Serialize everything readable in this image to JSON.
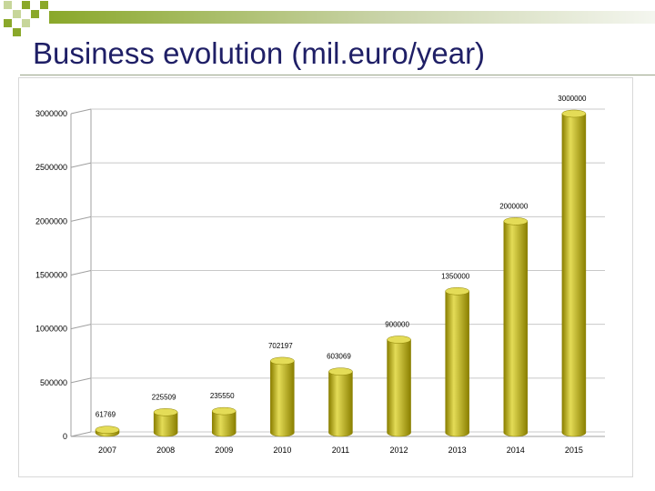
{
  "slide": {
    "title": "Business evolution (mil.euro/year)"
  },
  "colors": {
    "accent_green": "#8aa82a",
    "bar_fill": "#b5a800",
    "bar_light": "#e4dc57",
    "bar_dark": "#8a7f00",
    "title_color": "#1f1f66"
  },
  "chart_data": {
    "type": "bar",
    "title": "",
    "xlabel": "",
    "ylabel": "",
    "categories": [
      "2007",
      "2008",
      "2009",
      "2010",
      "2011",
      "2012",
      "2013",
      "2014",
      "2015"
    ],
    "values": [
      61769,
      225509,
      235550,
      702197,
      603069,
      900000,
      1350000,
      2000000,
      3000000
    ],
    "data_labels": [
      "61769",
      "225509",
      "235550",
      "702197",
      "603069",
      "900000",
      "1350000",
      "2000000",
      "3000000"
    ],
    "y_ticks": [
      0,
      500000,
      1000000,
      1500000,
      2000000,
      2500000,
      3000000
    ],
    "y_tick_labels": [
      "0",
      "500000",
      "1000000",
      "1500000",
      "2000000",
      "2500000",
      "3000000"
    ],
    "ylim": [
      0,
      3000000
    ],
    "grid": true,
    "legend": "none",
    "style": "3d-cylinder"
  }
}
